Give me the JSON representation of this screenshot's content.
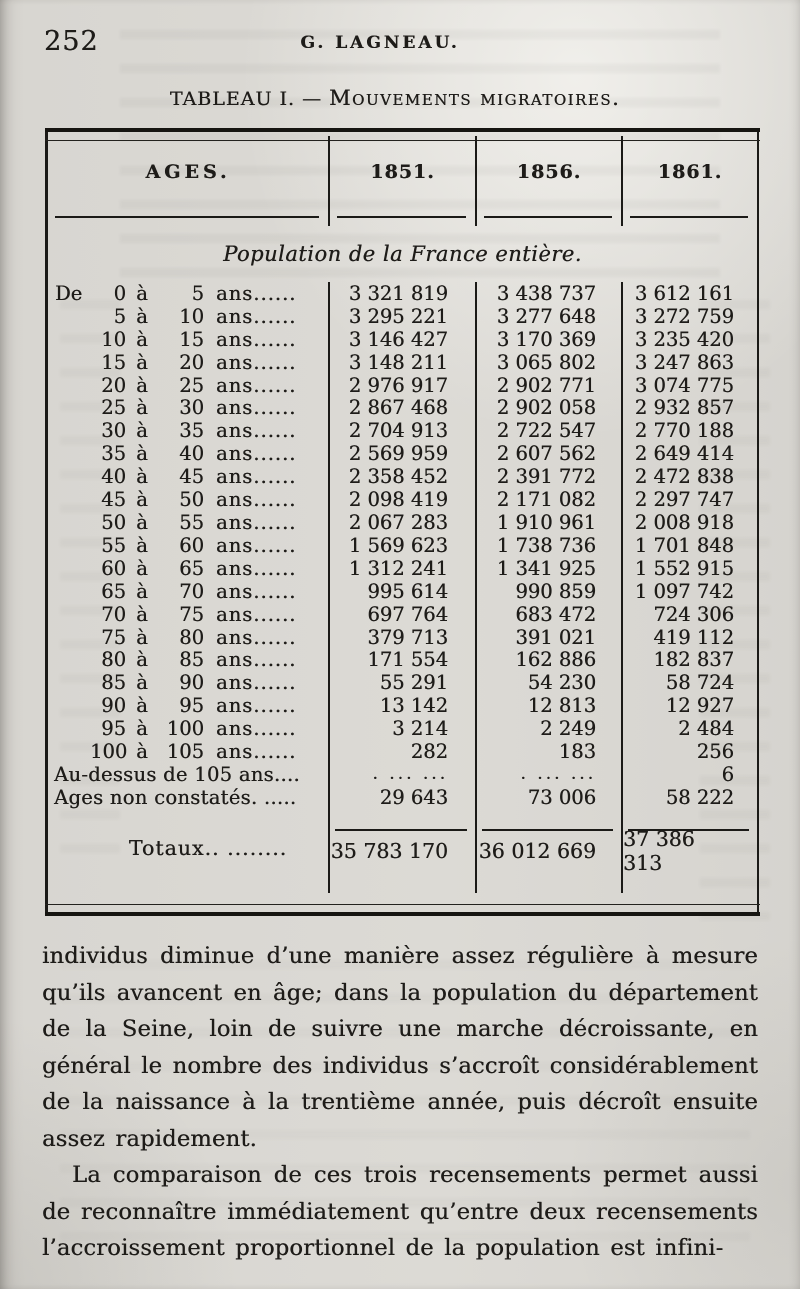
{
  "colors": {
    "paper": "#d8d6d1",
    "ink": "#1e1c19"
  },
  "page": {
    "number": "252",
    "running_title": "G. LAGNEAU.",
    "caption": {
      "part1": "TABLEAU I.",
      "dash": "—",
      "part2": "Mouvements migratoires."
    }
  },
  "table": {
    "columns": [
      "AGES.",
      "1851.",
      "1856.",
      "1861."
    ],
    "subtitle": "Population de la France entière.",
    "rows": [
      {
        "prefix": "De",
        "from": "0",
        "to": "5",
        "suffix": "ans......",
        "values": [
          "3 321 819",
          "3 438 737",
          "3 612 161"
        ]
      },
      {
        "prefix": "",
        "from": "5",
        "to": "10",
        "suffix": "ans......",
        "values": [
          "3 295 221",
          "3 277 648",
          "3 272 759"
        ]
      },
      {
        "prefix": "",
        "from": "10",
        "to": "15",
        "suffix": "ans......",
        "values": [
          "3 146 427",
          "3 170 369",
          "3 235 420"
        ]
      },
      {
        "prefix": "",
        "from": "15",
        "to": "20",
        "suffix": "ans......",
        "values": [
          "3 148 211",
          "3 065 802",
          "3 247 863"
        ]
      },
      {
        "prefix": "",
        "from": "20",
        "to": "25",
        "suffix": "ans......",
        "values": [
          "2 976 917",
          "2 902 771",
          "3 074 775"
        ]
      },
      {
        "prefix": "",
        "from": "25",
        "to": "30",
        "suffix": "ans......",
        "values": [
          "2 867 468",
          "2 902 058",
          "2 932 857"
        ]
      },
      {
        "prefix": "",
        "from": "30",
        "to": "35",
        "suffix": "ans......",
        "values": [
          "2 704 913",
          "2 722 547",
          "2 770 188"
        ]
      },
      {
        "prefix": "",
        "from": "35",
        "to": "40",
        "suffix": "ans......",
        "values": [
          "2 569 959",
          "2 607 562",
          "2 649 414"
        ]
      },
      {
        "prefix": "",
        "from": "40",
        "to": "45",
        "suffix": "ans......",
        "values": [
          "2 358 452",
          "2 391 772",
          "2 472 838"
        ]
      },
      {
        "prefix": "",
        "from": "45",
        "to": "50",
        "suffix": "ans......",
        "values": [
          "2 098 419",
          "2 171 082",
          "2 297 747"
        ]
      },
      {
        "prefix": "",
        "from": "50",
        "to": "55",
        "suffix": "ans......",
        "values": [
          "2 067 283",
          "1 910 961",
          "2 008 918"
        ]
      },
      {
        "prefix": "",
        "from": "55",
        "to": "60",
        "suffix": "ans......",
        "values": [
          "1 569 623",
          "1 738 736",
          "1 701 848"
        ]
      },
      {
        "prefix": "",
        "from": "60",
        "to": "65",
        "suffix": "ans......",
        "values": [
          "1 312 241",
          "1 341 925",
          "1 552 915"
        ]
      },
      {
        "prefix": "",
        "from": "65",
        "to": "70",
        "suffix": "ans......",
        "values": [
          "995 614",
          "990 859",
          "1 097 742"
        ]
      },
      {
        "prefix": "",
        "from": "70",
        "to": "75",
        "suffix": "ans......",
        "values": [
          "697 764",
          "683 472",
          "724 306"
        ]
      },
      {
        "prefix": "",
        "from": "75",
        "to": "80",
        "suffix": "ans......",
        "values": [
          "379 713",
          "391 021",
          "419 112"
        ]
      },
      {
        "prefix": "",
        "from": "80",
        "to": "85",
        "suffix": "ans......",
        "values": [
          "171 554",
          "162 886",
          "182 837"
        ]
      },
      {
        "prefix": "",
        "from": "85",
        "to": "90",
        "suffix": "ans......",
        "values": [
          "55 291",
          "54 230",
          "58 724"
        ]
      },
      {
        "prefix": "",
        "from": "90",
        "to": "95",
        "suffix": "ans......",
        "values": [
          "13 142",
          "12 813",
          "12 927"
        ]
      },
      {
        "prefix": "",
        "from": "95",
        "to": "100",
        "suffix": "ans......",
        "values": [
          "3 214",
          "2 249",
          "2 484"
        ]
      },
      {
        "prefix": "",
        "from": "100",
        "to": "105",
        "suffix": "ans......",
        "values": [
          "282",
          "183",
          "256"
        ]
      },
      {
        "label": "Au-dessus de 105 ans....",
        "values": [
          ". ... ...",
          ". ... ...",
          "6"
        ],
        "dots": [
          true,
          true,
          false
        ]
      },
      {
        "label": "Ages non constatés. .....",
        "values": [
          "29 643",
          "73 006",
          "58 222"
        ]
      }
    ],
    "totals": {
      "label": "Totaux.. ........",
      "values": [
        "35 783 170",
        "36 012 669",
        "37 386 313"
      ]
    }
  },
  "body": {
    "paragraph1": "individus diminue d’une manière assez régulière à mesure qu’ils avancent en âge; dans la population du département de la Seine, loin de suivre une marche décroissante, en général le nombre des individus s’accroît considérablement de la naissance à la trentième année, puis décroît ensuite assez rapidement.",
    "paragraph2": "La comparaison de ces trois recensements permet aussi de reconnaître immédiatement qu’entre deux recensements l’accroissement proportionnel de la population est infini-"
  }
}
